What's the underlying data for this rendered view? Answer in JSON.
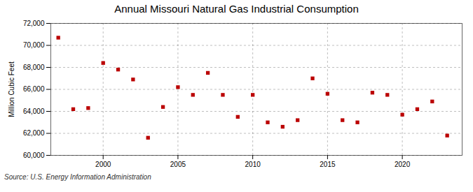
{
  "chart_data": {
    "type": "scatter",
    "title": "Annual Missouri Natural Gas Industrial Consumption",
    "ylabel": "Million Cubic Feet",
    "source": "Source: U.S. Energy Information Administration",
    "x": [
      1997,
      1998,
      1999,
      2000,
      2001,
      2002,
      2003,
      2004,
      2005,
      2006,
      2007,
      2008,
      2009,
      2010,
      2011,
      2012,
      2013,
      2014,
      2015,
      2016,
      2017,
      2018,
      2019,
      2020,
      2021,
      2022,
      2023
    ],
    "values": [
      70700,
      64200,
      64300,
      68400,
      67800,
      66900,
      61600,
      64400,
      66200,
      65500,
      67500,
      65500,
      63500,
      65500,
      63000,
      62600,
      63200,
      67000,
      65600,
      63200,
      63000,
      65700,
      65500,
      63700,
      64200,
      64900,
      61800
    ],
    "color": "#bb0000",
    "marker": "square",
    "xlim": [
      1996.5,
      2024.0
    ],
    "xticks": [
      2000,
      2005,
      2010,
      2015,
      2020
    ],
    "ylim": [
      60000,
      72000
    ],
    "yticks": [
      {
        "value": 60000,
        "label": "60,000"
      },
      {
        "value": 62000,
        "label": "62,000"
      },
      {
        "value": 64000,
        "label": "64,000"
      },
      {
        "value": 66000,
        "label": "66,000"
      },
      {
        "value": 68000,
        "label": "68,000"
      },
      {
        "value": 70000,
        "label": "70,000"
      },
      {
        "value": 72000,
        "label": "72,000"
      }
    ],
    "grid": true
  }
}
